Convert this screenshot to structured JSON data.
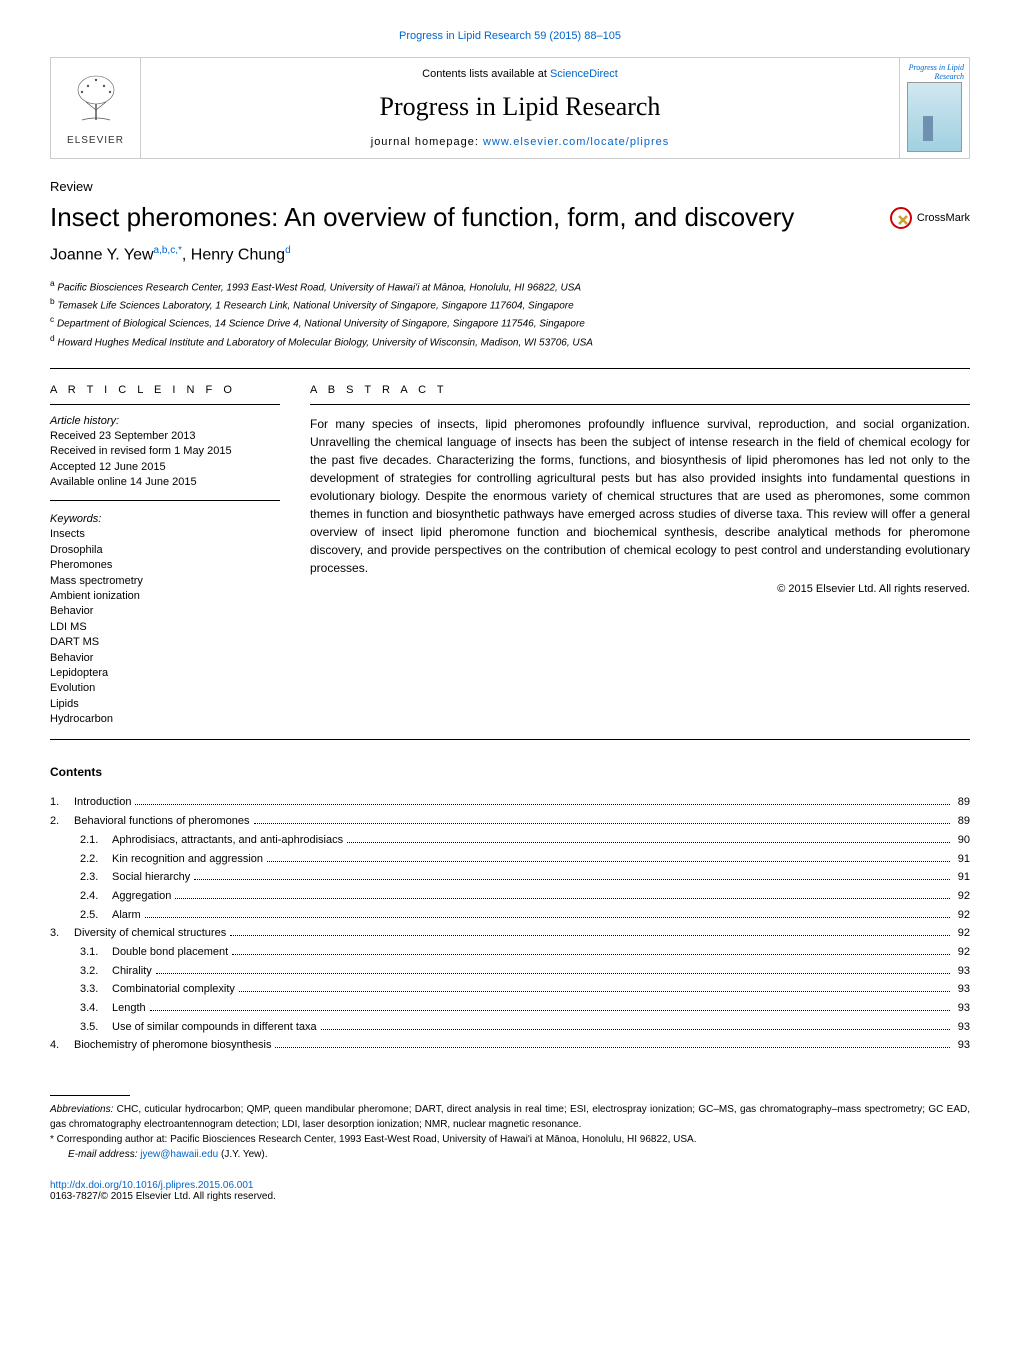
{
  "citation": "Progress in Lipid Research 59 (2015) 88–105",
  "header": {
    "contents_prefix": "Contents lists available at ",
    "contents_link": "ScienceDirect",
    "journal_title": "Progress in Lipid Research",
    "homepage_prefix": "journal homepage: ",
    "homepage_link": "www.elsevier.com/locate/plipres",
    "elsevier_label": "ELSEVIER",
    "cover_label": "Progress in Lipid Research"
  },
  "article": {
    "type": "Review",
    "title": "Insect pheromones: An overview of function, form, and discovery",
    "crossmark": "CrossMark",
    "authors_html": "Joanne Y. Yew",
    "authors_sup1": "a,b,c,",
    "authors_ast": "*",
    "authors_sep": ", Henry Chung",
    "authors_sup2": "d"
  },
  "affiliations": [
    {
      "sup": "a",
      "text": "Pacific Biosciences Research Center, 1993 East-West Road, University of Hawai'i at Mānoa, Honolulu, HI 96822, USA"
    },
    {
      "sup": "b",
      "text": "Temasek Life Sciences Laboratory, 1 Research Link, National University of Singapore, Singapore 117604, Singapore"
    },
    {
      "sup": "c",
      "text": "Department of Biological Sciences, 14 Science Drive 4, National University of Singapore, Singapore 117546, Singapore"
    },
    {
      "sup": "d",
      "text": "Howard Hughes Medical Institute and Laboratory of Molecular Biology, University of Wisconsin, Madison, WI 53706, USA"
    }
  ],
  "info": {
    "heading": "A R T I C L E   I N F O",
    "history_label": "Article history:",
    "history": [
      "Received 23 September 2013",
      "Received in revised form 1 May 2015",
      "Accepted 12 June 2015",
      "Available online 14 June 2015"
    ],
    "keywords_label": "Keywords:",
    "keywords": [
      "Insects",
      "Drosophila",
      "Pheromones",
      "Mass spectrometry",
      "Ambient ionization",
      "Behavior",
      "LDI MS",
      "DART MS",
      "Behavior",
      "Lepidoptera",
      "Evolution",
      "Lipids",
      "Hydrocarbon"
    ]
  },
  "abstract": {
    "heading": "A B S T R A C T",
    "text": "For many species of insects, lipid pheromones profoundly influence survival, reproduction, and social organization. Unravelling the chemical language of insects has been the subject of intense research in the field of chemical ecology for the past five decades. Characterizing the forms, functions, and biosynthesis of lipid pheromones has led not only to the development of strategies for controlling agricultural pests but has also provided insights into fundamental questions in evolutionary biology. Despite the enormous variety of chemical structures that are used as pheromones, some common themes in function and biosynthetic pathways have emerged across studies of diverse taxa. This review will offer a general overview of insect lipid pheromone function and biochemical synthesis, describe analytical methods for pheromone discovery, and provide perspectives on the contribution of chemical ecology to pest control and understanding evolutionary processes.",
    "copyright": "© 2015 Elsevier Ltd. All rights reserved."
  },
  "contents_heading": "Contents",
  "toc": [
    {
      "level": 1,
      "num": "1.",
      "title": "Introduction",
      "page": "89"
    },
    {
      "level": 1,
      "num": "2.",
      "title": "Behavioral functions of pheromones",
      "page": "89"
    },
    {
      "level": 2,
      "num": "2.1.",
      "title": "Aphrodisiacs, attractants, and anti-aphrodisiacs",
      "page": "90"
    },
    {
      "level": 2,
      "num": "2.2.",
      "title": "Kin recognition and aggression",
      "page": "91"
    },
    {
      "level": 2,
      "num": "2.3.",
      "title": "Social hierarchy",
      "page": "91"
    },
    {
      "level": 2,
      "num": "2.4.",
      "title": "Aggregation",
      "page": "92"
    },
    {
      "level": 2,
      "num": "2.5.",
      "title": "Alarm",
      "page": "92"
    },
    {
      "level": 1,
      "num": "3.",
      "title": "Diversity of chemical structures",
      "page": "92"
    },
    {
      "level": 2,
      "num": "3.1.",
      "title": "Double bond placement",
      "page": "92"
    },
    {
      "level": 2,
      "num": "3.2.",
      "title": "Chirality",
      "page": "93"
    },
    {
      "level": 2,
      "num": "3.3.",
      "title": "Combinatorial complexity",
      "page": "93"
    },
    {
      "level": 2,
      "num": "3.4.",
      "title": "Length",
      "page": "93"
    },
    {
      "level": 2,
      "num": "3.5.",
      "title": "Use of similar compounds in different taxa",
      "page": "93"
    },
    {
      "level": 1,
      "num": "4.",
      "title": "Biochemistry of pheromone biosynthesis",
      "page": "93"
    }
  ],
  "footnotes": {
    "abbrev_label": "Abbreviations:",
    "abbrev_text": " CHC, cuticular hydrocarbon; QMP, queen mandibular pheromone; DART, direct analysis in real time; ESI, electrospray ionization; GC–MS, gas chromatography–mass spectrometry; GC EAD, gas chromatography electroantennogram detection; LDI, laser desorption ionization; NMR, nuclear magnetic resonance.",
    "corr_marker": "*",
    "corr_text": " Corresponding author at: Pacific Biosciences Research Center, 1993 East-West Road, University of Hawai'i at Mānoa, Honolulu, HI 96822, USA.",
    "email_label": "E-mail address: ",
    "email": "jyew@hawaii.edu",
    "email_suffix": " (J.Y. Yew)."
  },
  "doi": {
    "url": "http://dx.doi.org/10.1016/j.plipres.2015.06.001",
    "issn": "0163-7827/© 2015 Elsevier Ltd. All rights reserved."
  }
}
